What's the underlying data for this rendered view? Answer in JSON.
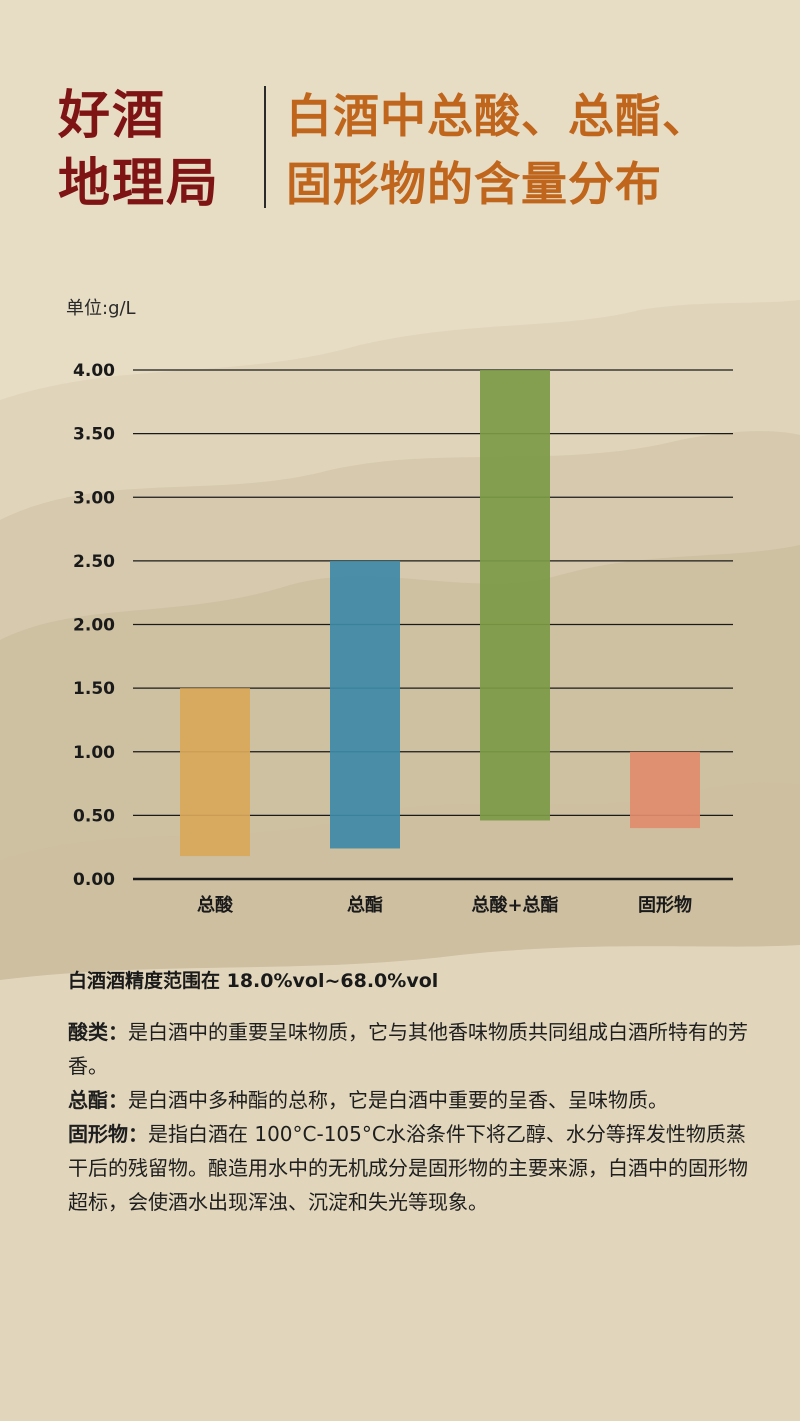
{
  "header": {
    "brand_line1": "好酒",
    "brand_line2": "地理局",
    "title_line1": "白酒中总酸、总酯、",
    "title_line2": "固形物的含量分布"
  },
  "unit_label": "单位:g/L",
  "colors": {
    "brand": "#7e1414",
    "title": "#c0651c",
    "background": "#e7dcc4"
  },
  "chart_data": {
    "type": "bar",
    "categories": [
      "总酸",
      "总酯",
      "总酸+总酯",
      "固形物"
    ],
    "series": [
      {
        "low": [
          0.18,
          0.24,
          0.46,
          0.4
        ],
        "high": [
          1.5,
          2.5,
          4.0,
          1.0
        ],
        "colors": [
          "#d9a85a",
          "#3e8aa6",
          "#7d9a46",
          "#e18c6c"
        ]
      }
    ],
    "ylim": [
      0,
      4
    ],
    "yticks": [
      "0.00",
      "0.50",
      "1.00",
      "1.50",
      "2.00",
      "2.50",
      "3.00",
      "3.50",
      "4.00"
    ],
    "ytick_values": [
      0,
      0.5,
      1,
      1.5,
      2,
      2.5,
      3,
      3.5,
      4
    ],
    "grid": true
  },
  "range_text": "白酒酒精度范围在 18.0%vol~68.0%vol",
  "notes": [
    {
      "label": "酸类：",
      "text": "是白酒中的重要呈味物质，它与其他香味物质共同组成白酒所特有的芳香。"
    },
    {
      "label": "总酯：",
      "text": "是白酒中多种酯的总称，它是白酒中重要的呈香、呈味物质。"
    },
    {
      "label": "固形物：",
      "text": "是指白酒在 100°C-105°C水浴条件下将乙醇、水分等挥发性物质蒸干后的残留物。酿造用水中的无机成分是固形物的主要来源，白酒中的固形物超标，会使酒水出现浑浊、沉淀和失光等现象。"
    }
  ]
}
